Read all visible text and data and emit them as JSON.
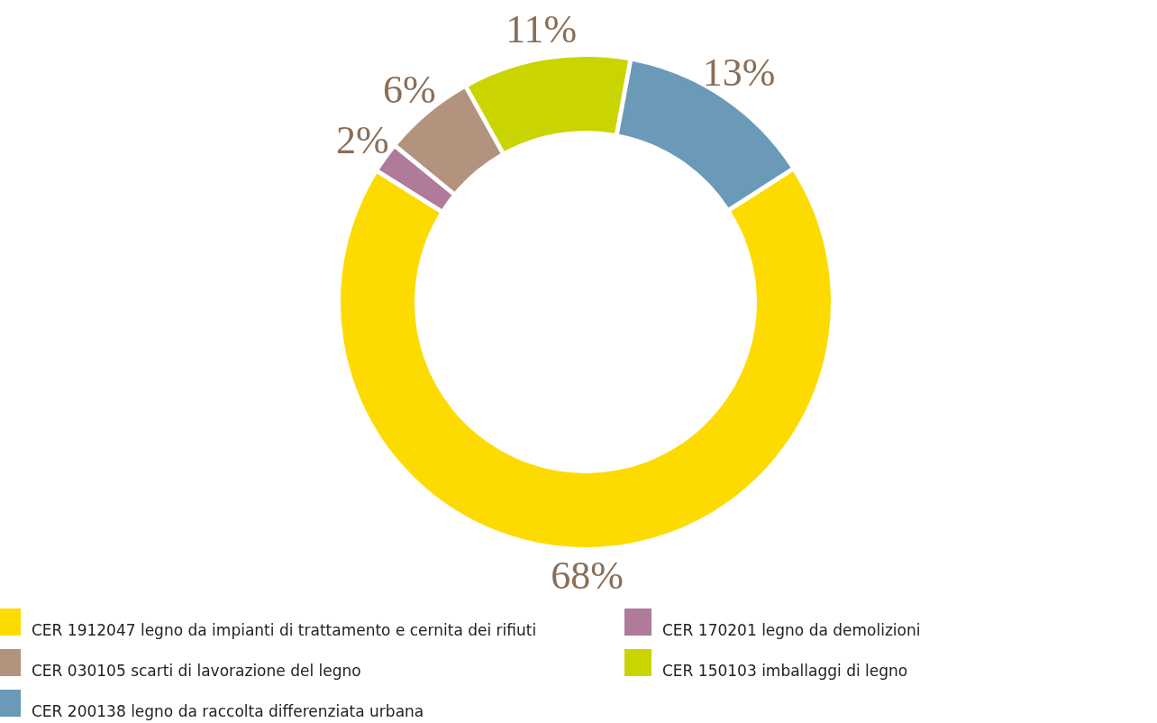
{
  "chart_data": {
    "type": "donut",
    "categories": [
      "CER 1912047 legno da  impianti di trattamento e cernita dei rifiuti",
      "CER 170201 legno da demolizioni",
      "CER 030105 scarti di lavorazione del legno",
      "CER 150103 imballaggi di legno",
      "CER 200138 legno da raccolta differenziata urbana"
    ],
    "values": [
      68,
      2,
      6,
      11,
      13
    ],
    "value_labels": [
      "68%",
      "2%",
      "6%",
      "11%",
      "13%"
    ],
    "colors": [
      "#fddb00",
      "#b07a9a",
      "#b3937d",
      "#c9d400",
      "#6a9ab8"
    ],
    "legend": "bottom"
  }
}
